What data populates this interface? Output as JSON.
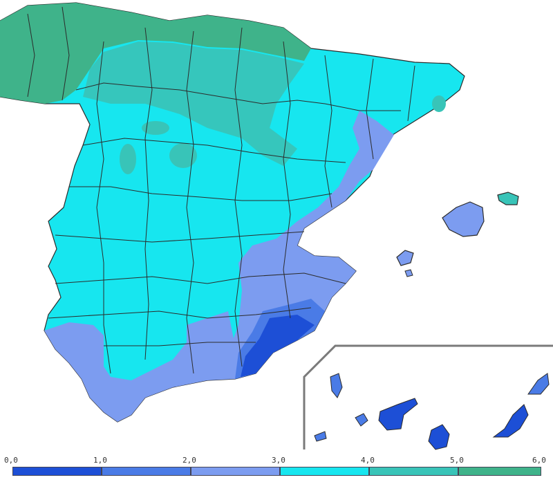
{
  "colors": {
    "sea": "#ffffff",
    "border": "#2b2b2b",
    "class_0_1": "#1d4fd6",
    "class_1_2": "#4a7be6",
    "class_2_3": "#7c9cf0",
    "class_3_4": "#17e6ef",
    "class_4_5": "#38c4b8",
    "class_5_6": "#3fb38a",
    "inset_frame": "#7a7a7a"
  },
  "legend": {
    "ticks": [
      "0,0",
      "1,0",
      "2,0",
      "3,0",
      "4,0",
      "5,0",
      "6,0"
    ],
    "classes": [
      {
        "from": 0,
        "to": 1,
        "color": "#1d4fd6"
      },
      {
        "from": 1,
        "to": 2,
        "color": "#4a7be6"
      },
      {
        "from": 2,
        "to": 3,
        "color": "#7c9cf0"
      },
      {
        "from": 3,
        "to": 4,
        "color": "#17e6ef"
      },
      {
        "from": 4,
        "to": 5,
        "color": "#38c4b8"
      },
      {
        "from": 5,
        "to": 6,
        "color": "#3fb38a"
      }
    ]
  },
  "regions": {
    "mainland": "spain-mainland",
    "islands": [
      "mallorca",
      "menorca",
      "ibiza",
      "formentera"
    ],
    "inset": "canary-islands"
  }
}
